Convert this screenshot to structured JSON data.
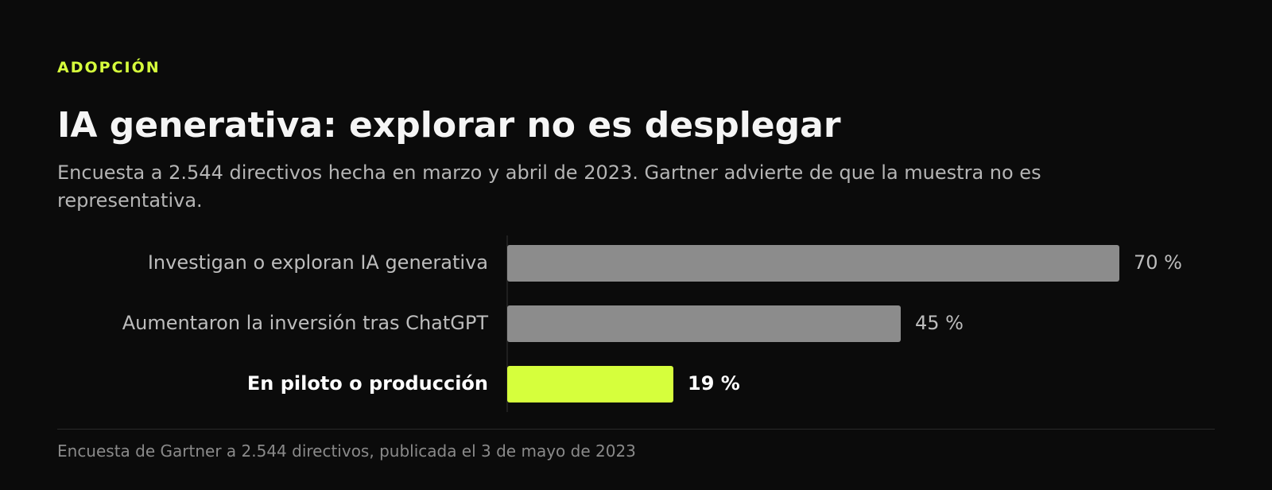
{
  "kicker": "ADOPCIÓN",
  "chart_data": {
    "type": "bar",
    "orientation": "horizontal",
    "title": "IA generativa: explorar no es desplegar",
    "subtitle": "Encuesta a 2.544 directivos hecha en marzo y abril de 2023. Gartner advierte de que la muestra no es representativa.",
    "categories": [
      "Investigan o exploran IA generativa",
      "Aumentaron la inversión tras ChatGPT",
      "En piloto o producción"
    ],
    "values": [
      70,
      45,
      19
    ],
    "value_labels": [
      "70 %",
      "45 %",
      "19 %"
    ],
    "colors": [
      "#8c8c8c",
      "#8c8c8c",
      "#d6ff3c"
    ],
    "highlight": 2
  },
  "source": "Encuesta de Gartner a 2.544 directivos, publicada el 3 de mayo de 2023"
}
